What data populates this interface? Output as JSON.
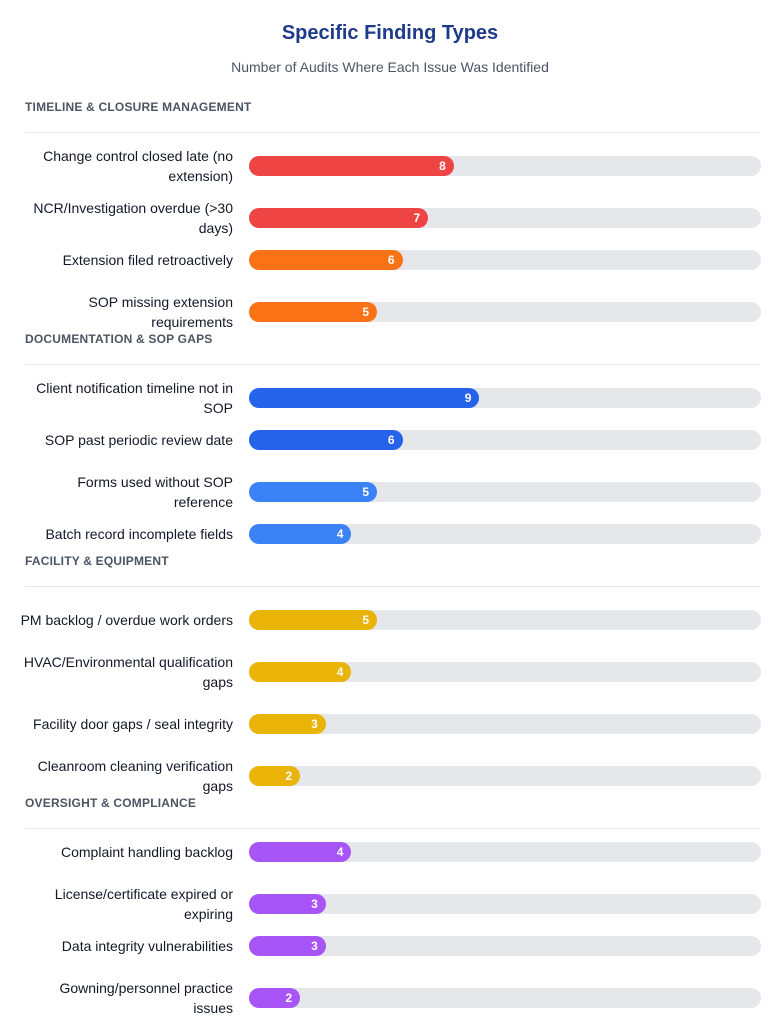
{
  "chart_data": {
    "type": "bar",
    "orientation": "horizontal",
    "title": "Specific Finding Types",
    "subtitle": "Number of Audits Where Each Issue Was Identified",
    "xlim": [
      0,
      20
    ],
    "groups": [
      {
        "name": "TIMELINE & CLOSURE MANAGEMENT",
        "items": [
          {
            "label": "Change control closed late (no extension)",
            "value": 8,
            "color": "#ef4444"
          },
          {
            "label": "NCR/Investigation overdue (>30 days)",
            "value": 7,
            "color": "#ef4444"
          },
          {
            "label": "Extension filed retroactively",
            "value": 6,
            "color": "#f97316"
          },
          {
            "label": "SOP missing extension requirements",
            "value": 5,
            "color": "#f97316"
          }
        ]
      },
      {
        "name": "DOCUMENTATION & SOP GAPS",
        "items": [
          {
            "label": "Client notification timeline not in SOP",
            "value": 9,
            "color": "#2563eb"
          },
          {
            "label": "SOP past periodic review date",
            "value": 6,
            "color": "#2563eb"
          },
          {
            "label": "Forms used without SOP reference",
            "value": 5,
            "color": "#3b82f6"
          },
          {
            "label": "Batch record incomplete fields",
            "value": 4,
            "color": "#3b82f6"
          }
        ]
      },
      {
        "name": "FACILITY & EQUIPMENT",
        "items": [
          {
            "label": "PM backlog / overdue work orders",
            "value": 5,
            "color": "#eab308"
          },
          {
            "label": "HVAC/Environmental qualification gaps",
            "value": 4,
            "color": "#eab308"
          },
          {
            "label": "Facility door gaps / seal integrity",
            "value": 3,
            "color": "#eab308"
          },
          {
            "label": "Cleanroom cleaning verification gaps",
            "value": 2,
            "color": "#eab308"
          }
        ]
      },
      {
        "name": "OVERSIGHT & COMPLIANCE",
        "items": [
          {
            "label": "Complaint handling backlog",
            "value": 4,
            "color": "#a855f7"
          },
          {
            "label": "License/certificate expired or expiring",
            "value": 3,
            "color": "#a855f7"
          },
          {
            "label": "Data integrity vulnerabilities",
            "value": 3,
            "color": "#a855f7"
          },
          {
            "label": "Gowning/personnel practice issues",
            "value": 2,
            "color": "#a855f7"
          }
        ]
      }
    ]
  }
}
